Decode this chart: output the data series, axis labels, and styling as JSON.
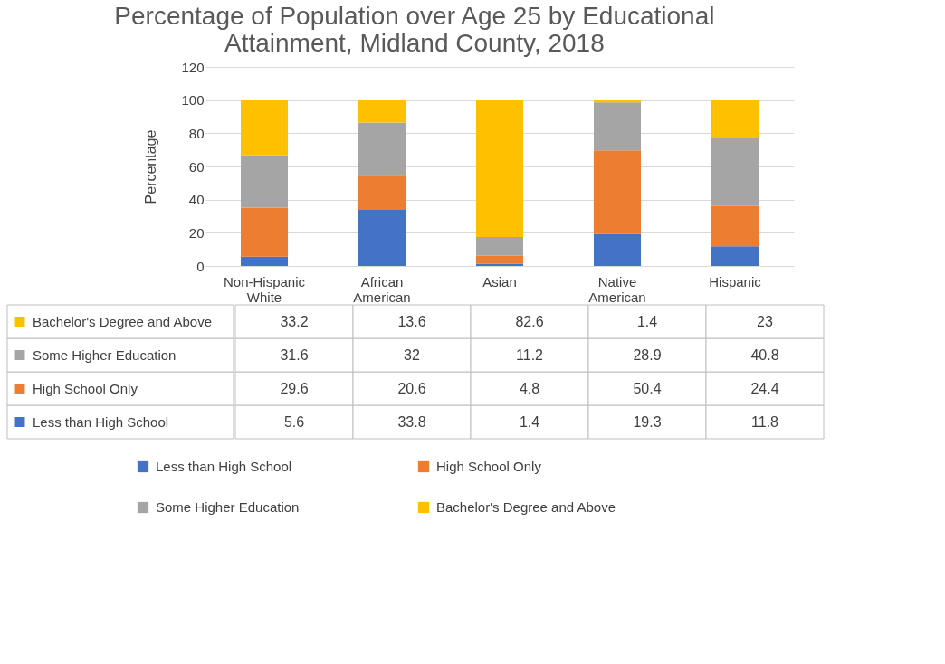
{
  "chart_data": {
    "type": "bar",
    "stacked": true,
    "title": "Percentage of Population over Age 25 by Educational Attainment, Midland County, 2018",
    "ylabel": "Percentage",
    "categories": [
      "Non-Hispanic White",
      "African American",
      "Asian",
      "Native American",
      "Hispanic"
    ],
    "series": [
      {
        "name": "Less than High School",
        "color": "#4472c4",
        "values": [
          5.6,
          33.8,
          1.4,
          19.3,
          11.8
        ]
      },
      {
        "name": "High School Only",
        "color": "#ed7d31",
        "values": [
          29.6,
          20.6,
          4.8,
          50.4,
          24.4
        ]
      },
      {
        "name": "Some Higher Education",
        "color": "#a5a5a5",
        "values": [
          31.6,
          32,
          11.2,
          28.9,
          40.8
        ]
      },
      {
        "name": "Bachelor's Degree and Above",
        "color": "#ffc000",
        "values": [
          33.2,
          13.6,
          82.6,
          1.4,
          23
        ]
      }
    ],
    "ylim": [
      0,
      120
    ],
    "yticks": [
      0,
      20,
      40,
      60,
      80,
      100,
      120
    ],
    "grid": "y",
    "legend": "bottom",
    "data_labels": true
  }
}
